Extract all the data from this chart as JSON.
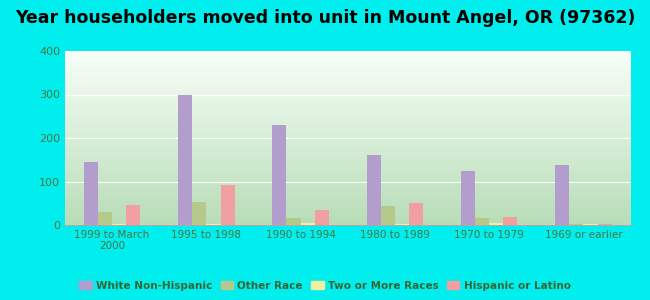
{
  "title": "Year householders moved into unit in Mount Angel, OR (97362)",
  "categories": [
    "1999 to March\n2000",
    "1995 to 1998",
    "1990 to 1994",
    "1980 to 1989",
    "1970 to 1979",
    "1969 or earlier"
  ],
  "series": {
    "White Non-Hispanic": [
      145,
      300,
      230,
      160,
      125,
      138
    ],
    "Other Race": [
      30,
      52,
      15,
      43,
      15,
      2
    ],
    "Two or More Races": [
      2,
      3,
      4,
      2,
      5,
      2
    ],
    "Hispanic or Latino": [
      47,
      92,
      35,
      50,
      18,
      2
    ]
  },
  "colors": {
    "White Non-Hispanic": "#b39dcc",
    "Other Race": "#b5c98a",
    "Two or More Races": "#f0f0a0",
    "Hispanic or Latino": "#f0a0a0"
  },
  "ylim": [
    0,
    400
  ],
  "yticks": [
    0,
    100,
    200,
    300,
    400
  ],
  "background_color": "#00eeee",
  "bar_width": 0.15,
  "title_fontsize": 12.5,
  "gradient_bottom": "#b8ddb8",
  "gradient_top": "#f8fff8"
}
